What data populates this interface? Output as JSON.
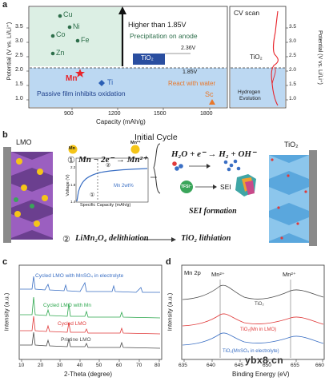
{
  "panel_labels": {
    "a": "a",
    "b": "b",
    "c": "c",
    "d": "d"
  },
  "panel_a": {
    "y_left_label": "Potential (V vs. Li/Li⁺)",
    "y_right_label": "Potential (V vs. Li/Li⁺)",
    "x_label": "Capacity (mAh/g)",
    "right_box_title": "CV scan",
    "y_ticks": [
      "1.0",
      "1.5",
      "2.0",
      "2.5",
      "3.0",
      "3.5"
    ],
    "x_ticks": [
      "900",
      "1200",
      "1500",
      "1800"
    ],
    "right_y_ticks": [
      "1.0",
      "1.5",
      "2.0",
      "2.5",
      "3.0",
      "3.5"
    ],
    "arrow_text_1": "Higher than 1.85V",
    "arrow_text_2": "Precipitation on anode",
    "tio2_box_label": "TiO₂",
    "v_236": "2.36V",
    "v_185": "1.85V",
    "elements": {
      "cu": "Cu",
      "ni": "Ni",
      "co": "Co",
      "fe": "Fe",
      "zn": "Zn",
      "mn": "Mn",
      "ti": "Ti",
      "sc": "Sc"
    },
    "passive_text": "Passive film inhibits oxidation",
    "react_text": "React with water",
    "cv_tio2": "TiO₂",
    "hydrogen_1": "Hydrogen",
    "hydrogen_2": "Evolution",
    "colors": {
      "green_region": "#dcefe4",
      "blue_region": "#bcd8f2",
      "mn_red": "#e8232a",
      "ti_blue": "#2b5fb5",
      "sc_orange": "#e8772a",
      "element_green": "#2d6e4a"
    }
  },
  "panel_b": {
    "lmo_label": "LMO",
    "tio2_label": "TiO₂",
    "initial_cycle": "Initial Cycle",
    "step1_num": "①",
    "step1_eq": "Mn − 2e⁻ → Mn²⁺",
    "mn_ball": "Mn",
    "mn2_ball": "Mn²⁺",
    "inset_y_label": "Voltage (V)",
    "inset_x_label": "Specific Capacity (mAh/g)",
    "inset_y_ticks": [
      "1.4",
      "1.6",
      "1.8",
      "2.0",
      "2.2"
    ],
    "inset_x_ticks": [
      "0",
      "10",
      "20",
      "30",
      "40",
      "50",
      "60"
    ],
    "inset_legend": "Mn 2wt%",
    "inset_marker_1": "①",
    "inset_marker_2": "②",
    "h2_eq": "H₂O + e⁻ → H₂ + OH⁻",
    "tfsi": "TFSI⁻",
    "sei": "SEI",
    "sei_formation": "SEI formation",
    "step2_num": "②",
    "step2_eq_left": "LiMn₂O₄ delithiation",
    "step2_eq_right": "TiO₂ lithiation"
  },
  "panel_c": {
    "y_label": "Intensity (a.u.)",
    "x_label": "2-Theta (degree)",
    "x_ticks": [
      "10",
      "20",
      "30",
      "40",
      "50",
      "60",
      "70",
      "80"
    ],
    "series": [
      {
        "name": "Cycled LMO with MnSO₄ in electrolyte",
        "color": "#3a6fc4"
      },
      {
        "name": "Cycled LMO with Mn",
        "color": "#2fa84f"
      },
      {
        "name": "Cycled LMO",
        "color": "#e03a3a"
      },
      {
        "name": "Pristine LMO",
        "color": "#4a4a4a"
      }
    ]
  },
  "panel_d": {
    "title": "Mn 2p",
    "y_label": "Intensity (a.u.)",
    "x_label": "Binding Energy (eV)",
    "x_ticks": [
      "635",
      "640",
      "645",
      "650",
      "655",
      "660"
    ],
    "peak_1": "Mn²⁺",
    "peak_2": "Mn²⁺",
    "series": [
      {
        "name": "TiO₂",
        "color": "#4a4a4a"
      },
      {
        "name": "TiO₂(Mn in LMO)",
        "color": "#e03a3a"
      },
      {
        "name": "TiO₂(MnSO₄ in electrolyte)",
        "color": "#3a6fc4"
      }
    ]
  },
  "watermark": "ybx8.cn"
}
